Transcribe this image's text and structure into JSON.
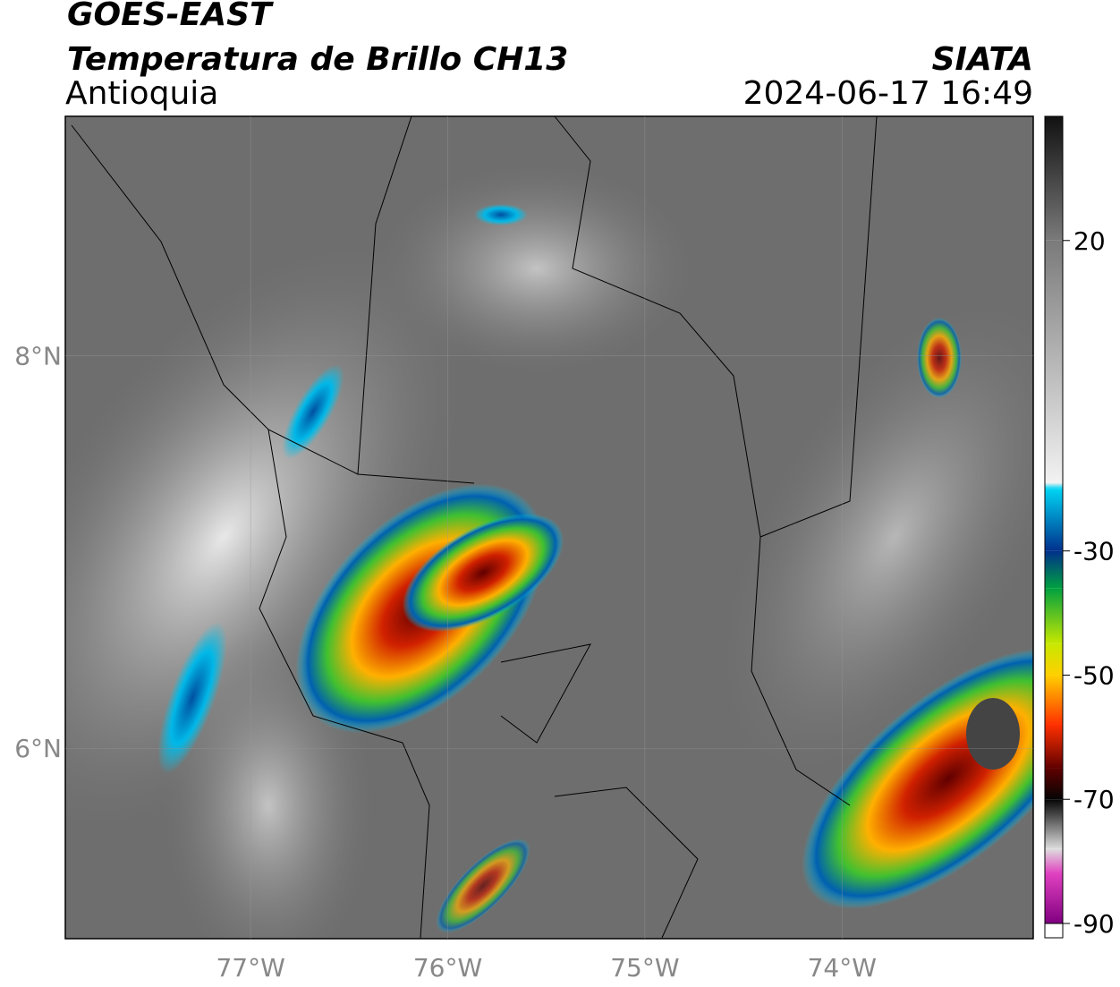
{
  "header": {
    "title": "GOES-EAST",
    "subtitle": "Temperatura de Brillo CH13",
    "region": "Antioquia",
    "agency": "SIATA",
    "datetime": "2024-06-17 16:49"
  },
  "map": {
    "xlim": [
      -77.94,
      -73.03
    ],
    "ylim": [
      5.03,
      9.22
    ],
    "xticks": [
      {
        "value": -77,
        "label": "77°W"
      },
      {
        "value": -76,
        "label": "76°W"
      },
      {
        "value": -75,
        "label": "75°W"
      },
      {
        "value": -74,
        "label": "74°W"
      }
    ],
    "yticks": [
      {
        "value": 8,
        "label": "8°N"
      },
      {
        "value": 6,
        "label": "6°N"
      }
    ],
    "grid": true
  },
  "colorbar": {
    "lim": [
      -90,
      40
    ],
    "ticks": [
      20,
      -30,
      -50,
      -70,
      -90
    ],
    "stops": [
      {
        "value": 40,
        "color": "#111111"
      },
      {
        "value": 20,
        "color": "#7a7a7a"
      },
      {
        "value": -19,
        "color": "#f2f2f2"
      },
      {
        "value": -20,
        "color": "#00d4f4"
      },
      {
        "value": -30,
        "color": "#00308c"
      },
      {
        "value": -36,
        "color": "#00a040"
      },
      {
        "value": -45,
        "color": "#c8e800"
      },
      {
        "value": -50,
        "color": "#ffd000"
      },
      {
        "value": -58,
        "color": "#ff3000"
      },
      {
        "value": -65,
        "color": "#600000"
      },
      {
        "value": -70,
        "color": "#050505"
      },
      {
        "value": -78,
        "color": "#dddddd"
      },
      {
        "value": -82,
        "color": "#e040c0"
      },
      {
        "value": -90,
        "color": "#800080"
      }
    ]
  }
}
